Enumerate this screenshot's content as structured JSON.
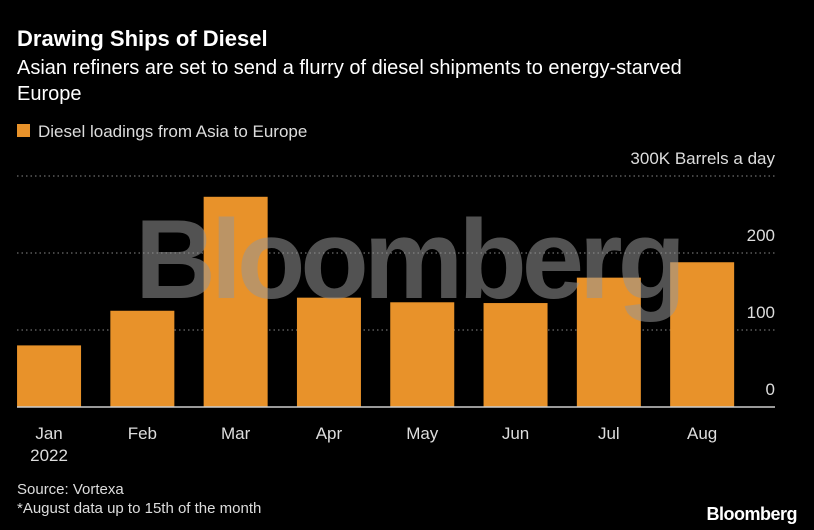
{
  "chart_data": {
    "type": "bar",
    "title": "Drawing Ships of Diesel",
    "subtitle": "Asian refiners are set to send a flurry of diesel shipments to energy-starved Europe",
    "categories": [
      "Jan",
      "Feb",
      "Mar",
      "Apr",
      "May",
      "Jun",
      "Jul",
      "Aug"
    ],
    "x_sublabel": "2022",
    "series": [
      {
        "name": "Diesel loadings from Asia to Europe",
        "color": "#e8922a",
        "values": [
          80,
          125,
          273,
          142,
          136,
          135,
          168,
          188
        ]
      }
    ],
    "ylim": [
      0,
      300
    ],
    "yticks": [
      0,
      100,
      200,
      {
        "value": 300,
        "label": "300K Barrels a day"
      }
    ],
    "grid": true,
    "watermark": "Bloomberg",
    "source": "Source: Vortexa",
    "note": "*August data up to 15th of the month",
    "logo": "Bloomberg"
  }
}
